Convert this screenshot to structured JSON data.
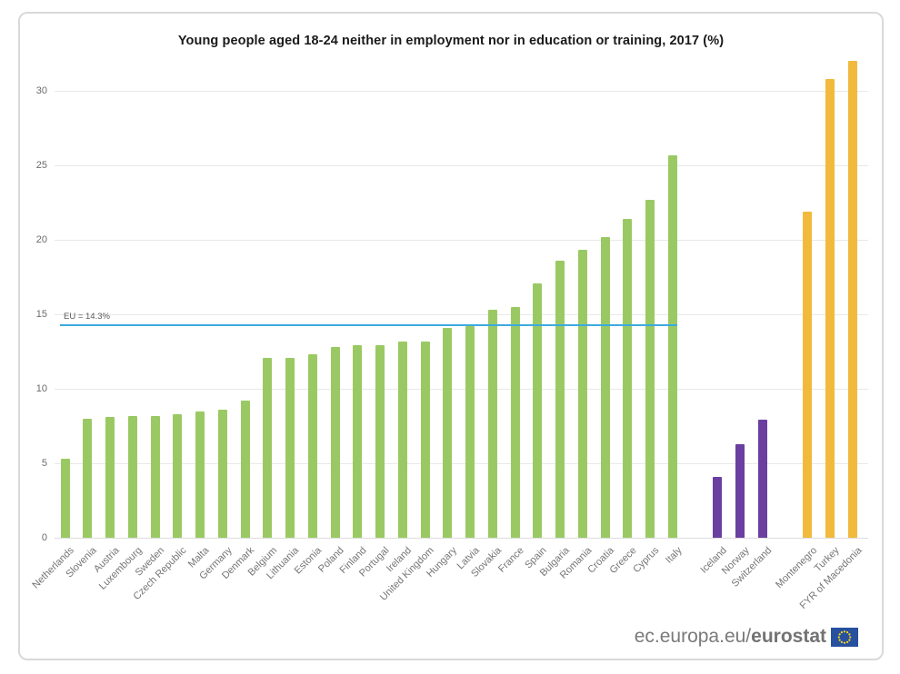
{
  "title": "Young people aged 18-24 neither in employment nor in education or training, 2017 (%)",
  "chart_data": {
    "type": "bar",
    "title": "Young people aged 18-24 neither in employment nor in education or training, 2017 (%)",
    "xlabel": "",
    "ylabel": "",
    "ylim": [
      0,
      32.5
    ],
    "yticks": [
      0,
      5,
      10,
      15,
      20,
      25,
      30
    ],
    "grid": true,
    "legend_position": "none",
    "reference_line": {
      "label": "EU = 14.3%",
      "value": 14.3,
      "color": "#3caadf"
    },
    "series": [
      {
        "color": "#9ac963",
        "categories": [
          "Netherlands",
          "Slovenia",
          "Austria",
          "Luxembourg",
          "Sweden",
          "Czech Republic",
          "Malta",
          "Germany",
          "Denmark",
          "Belgium",
          "Lithuania",
          "Estonia",
          "Poland",
          "Finland",
          "Portugal",
          "Ireland",
          "United Kingdom",
          "Hungary",
          "Latvia",
          "Slovakia",
          "France",
          "Spain",
          "Bulgaria",
          "Romania",
          "Croatia",
          "Greece",
          "Cyprus",
          "Italy"
        ],
        "values": [
          5.3,
          8.0,
          8.1,
          8.2,
          8.2,
          8.3,
          8.5,
          8.6,
          9.2,
          12.1,
          12.1,
          12.3,
          12.8,
          12.9,
          12.9,
          13.2,
          13.2,
          14.1,
          14.2,
          15.3,
          15.5,
          17.1,
          18.6,
          19.3,
          20.2,
          21.4,
          22.7,
          25.7
        ]
      },
      {
        "color": "#6a3fa0",
        "categories": [
          "Iceland",
          "Norway",
          "Switzerland"
        ],
        "values": [
          4.1,
          6.3,
          7.9
        ]
      },
      {
        "color": "#f2ba3c",
        "categories": [
          "Montenegro",
          "Turkey",
          "FYR of Macedonia"
        ],
        "values": [
          21.9,
          30.8,
          32.0
        ]
      }
    ],
    "colors": {
      "eu_bars": "#9ac963",
      "efta_bars": "#6a3fa0",
      "candidate_bars": "#f2ba3c",
      "eu_average_line": "#3caadf"
    }
  },
  "footer": {
    "site": "ec.europa.eu/",
    "brand": "eurostat",
    "flag_blue": "#27509e",
    "flag_star_yellow": "#ffd617"
  }
}
